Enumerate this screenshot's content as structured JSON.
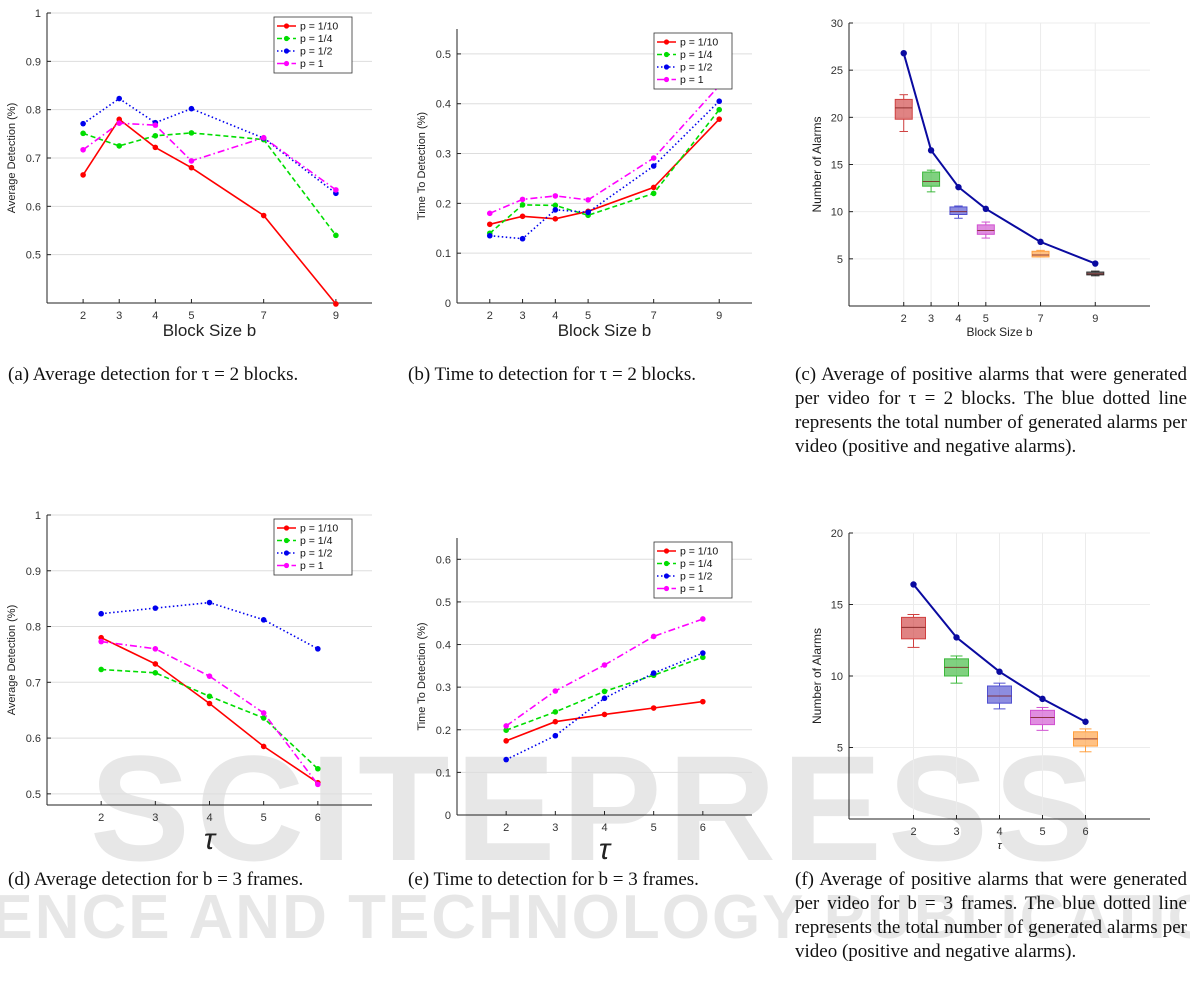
{
  "chart_data": [
    {
      "id": "a",
      "type": "line",
      "xlabel": "Block Size b",
      "ylabel": "Average Detection (%)",
      "x": [
        2,
        3,
        4,
        5,
        7,
        9
      ],
      "xticks": [
        "2",
        "3",
        "4",
        "5",
        "7",
        "9"
      ],
      "xlim": [
        1,
        10
      ],
      "ylim": [
        0.4,
        1.0
      ],
      "yticks": [
        "0.5",
        "0.6",
        "0.7",
        "0.8",
        "0.9",
        "1"
      ],
      "grid": true,
      "legend": "top-right",
      "series": [
        {
          "name": "p = 1/10",
          "color": "#ff0000",
          "dash": "solid",
          "values": [
            0.665,
            0.78,
            0.722,
            0.68,
            0.581,
            0.398
          ]
        },
        {
          "name": "p = 1/4",
          "color": "#00dd00",
          "dash": "dashed",
          "values": [
            0.751,
            0.725,
            0.746,
            0.752,
            0.738,
            0.54
          ]
        },
        {
          "name": "p = 1/2",
          "color": "#0000ee",
          "dash": "dotted",
          "values": [
            0.771,
            0.823,
            0.773,
            0.802,
            0.741,
            0.627
          ]
        },
        {
          "name": "p = 1",
          "color": "#ff00ff",
          "dash": "dashdot",
          "values": [
            0.717,
            0.772,
            0.768,
            0.694,
            0.742,
            0.634
          ]
        }
      ]
    },
    {
      "id": "b",
      "type": "line",
      "xlabel": "Block Size b",
      "ylabel": "Time To Detection (%)",
      "x": [
        2,
        3,
        4,
        5,
        7,
        9
      ],
      "xticks": [
        "2",
        "3",
        "4",
        "5",
        "7",
        "9"
      ],
      "xlim": [
        1,
        10
      ],
      "ylim": [
        0,
        0.55
      ],
      "yticks": [
        "0",
        "0.1",
        "0.2",
        "0.3",
        "0.4",
        "0.5"
      ],
      "grid": true,
      "legend": "top-right",
      "series": [
        {
          "name": "p = 1/10",
          "color": "#ff0000",
          "dash": "solid",
          "values": [
            0.158,
            0.174,
            0.169,
            0.184,
            0.232,
            0.369
          ]
        },
        {
          "name": "p = 1/4",
          "color": "#00dd00",
          "dash": "dashed",
          "values": [
            0.14,
            0.197,
            0.196,
            0.176,
            0.22,
            0.388
          ]
        },
        {
          "name": "p = 1/2",
          "color": "#0000ee",
          "dash": "dotted",
          "values": [
            0.135,
            0.129,
            0.187,
            0.182,
            0.275,
            0.405
          ]
        },
        {
          "name": "p = 1",
          "color": "#ff00ff",
          "dash": "dashdot",
          "values": [
            0.18,
            0.208,
            0.215,
            0.207,
            0.291,
            0.436
          ]
        }
      ]
    },
    {
      "id": "c",
      "type": "box",
      "xlabel": "Block Size b",
      "ylabel": "Number of Alarms",
      "x": [
        2,
        3,
        4,
        5,
        7,
        9
      ],
      "xticks": [
        "2",
        "3",
        "4",
        "5",
        "7",
        "9"
      ],
      "xlim": [
        0,
        11
      ],
      "ylim": [
        0,
        30
      ],
      "yticks": [
        "5",
        "10",
        "15",
        "20",
        "25",
        "30"
      ],
      "grid": true,
      "total_line": {
        "color": "#0a0aa0",
        "values": [
          26.8,
          16.5,
          12.6,
          10.3,
          6.8,
          4.5
        ]
      },
      "boxes": [
        {
          "color": "#d04040",
          "whisker_low": 18.5,
          "q1": 19.8,
          "median": 21.0,
          "q3": 21.9,
          "whisker_high": 22.4
        },
        {
          "color": "#3cb83c",
          "whisker_low": 12.1,
          "q1": 12.7,
          "median": 13.2,
          "q3": 14.2,
          "whisker_high": 14.4
        },
        {
          "color": "#5050d0",
          "whisker_low": 9.3,
          "q1": 9.7,
          "median": 10.0,
          "q3": 10.5,
          "whisker_high": 10.6
        },
        {
          "color": "#d050d0",
          "whisker_low": 7.2,
          "q1": 7.6,
          "median": 8.0,
          "q3": 8.6,
          "whisker_high": 8.9
        },
        {
          "color": "#ffa040",
          "whisker_low": 5.2,
          "q1": 5.2,
          "median": 5.4,
          "q3": 5.8,
          "whisker_high": 5.9
        },
        {
          "color": "#303030",
          "whisker_low": 3.2,
          "q1": 3.3,
          "median": 3.4,
          "q3": 3.6,
          "whisker_high": 3.7
        }
      ]
    },
    {
      "id": "d",
      "type": "line",
      "xlabel": "τ",
      "ylabel": "Average Detection (%)",
      "x": [
        2,
        3,
        4,
        5,
        6
      ],
      "xticks": [
        "2",
        "3",
        "4",
        "5",
        "6"
      ],
      "xlim": [
        1,
        7
      ],
      "ylim": [
        0.48,
        1.0
      ],
      "yticks": [
        "0.5",
        "0.6",
        "0.7",
        "0.8",
        "0.9",
        "1"
      ],
      "grid": true,
      "legend": "top-right",
      "series": [
        {
          "name": "p = 1/10",
          "color": "#ff0000",
          "dash": "solid",
          "values": [
            0.78,
            0.733,
            0.662,
            0.585,
            0.52
          ]
        },
        {
          "name": "p = 1/4",
          "color": "#00dd00",
          "dash": "dashed",
          "values": [
            0.723,
            0.717,
            0.675,
            0.636,
            0.545
          ]
        },
        {
          "name": "p = 1/2",
          "color": "#0000ee",
          "dash": "dotted",
          "values": [
            0.823,
            0.833,
            0.843,
            0.812,
            0.76
          ]
        },
        {
          "name": "p = 1",
          "color": "#ff00ff",
          "dash": "dashdot",
          "values": [
            0.773,
            0.76,
            0.711,
            0.645,
            0.517
          ]
        }
      ]
    },
    {
      "id": "e",
      "type": "line",
      "xlabel": "τ",
      "ylabel": "Time To Detection (%)",
      "x": [
        2,
        3,
        4,
        5,
        6
      ],
      "xticks": [
        "2",
        "3",
        "4",
        "5",
        "6"
      ],
      "xlim": [
        1,
        7
      ],
      "ylim": [
        0,
        0.65
      ],
      "yticks": [
        "0",
        "0.1",
        "0.2",
        "0.3",
        "0.4",
        "0.5",
        "0.6"
      ],
      "grid": true,
      "legend": "top-right",
      "series": [
        {
          "name": "p = 1/10",
          "color": "#ff0000",
          "dash": "solid",
          "values": [
            0.174,
            0.219,
            0.236,
            0.251,
            0.266
          ]
        },
        {
          "name": "p = 1/4",
          "color": "#00dd00",
          "dash": "dashed",
          "values": [
            0.199,
            0.242,
            0.29,
            0.328,
            0.37
          ]
        },
        {
          "name": "p = 1/2",
          "color": "#0000ee",
          "dash": "dotted",
          "values": [
            0.13,
            0.186,
            0.274,
            0.333,
            0.38
          ]
        },
        {
          "name": "p = 1",
          "color": "#ff00ff",
          "dash": "dashdot",
          "values": [
            0.209,
            0.291,
            0.352,
            0.419,
            0.46
          ]
        }
      ]
    },
    {
      "id": "f",
      "type": "box",
      "xlabel": "τ",
      "ylabel": "Number of Alarms",
      "x": [
        2,
        3,
        4,
        5,
        6
      ],
      "xticks": [
        "2",
        "3",
        "4",
        "5",
        "6"
      ],
      "xlim": [
        0.5,
        7.5
      ],
      "ylim": [
        0,
        20
      ],
      "yticks": [
        "5",
        "10",
        "15",
        "20"
      ],
      "grid": true,
      "total_line": {
        "color": "#0a0aa0",
        "values": [
          16.4,
          12.7,
          10.3,
          8.4,
          6.8
        ]
      },
      "boxes": [
        {
          "color": "#d04040",
          "whisker_low": 12.0,
          "q1": 12.6,
          "median": 13.4,
          "q3": 14.1,
          "whisker_high": 14.3
        },
        {
          "color": "#3cb83c",
          "whisker_low": 9.5,
          "q1": 10.0,
          "median": 10.6,
          "q3": 11.2,
          "whisker_high": 11.4
        },
        {
          "color": "#5050d0",
          "whisker_low": 7.7,
          "q1": 8.1,
          "median": 8.6,
          "q3": 9.3,
          "whisker_high": 9.5
        },
        {
          "color": "#d050d0",
          "whisker_low": 6.2,
          "q1": 6.6,
          "median": 7.1,
          "q3": 7.6,
          "whisker_high": 7.8
        },
        {
          "color": "#ffa040",
          "whisker_low": 4.7,
          "q1": 5.1,
          "median": 5.6,
          "q3": 6.1,
          "whisker_high": 6.3
        }
      ]
    }
  ],
  "captions": {
    "a": "(a) Average detection for τ = 2 blocks.",
    "b": "(b) Time to detection for τ = 2 blocks.",
    "c": "(c) Average of positive alarms that were generated per video for τ = 2 blocks. The blue dotted line represents the total number of generated alarms per video (positive and negative alarms).",
    "d": "(d) Average detection for b = 3 frames.",
    "e": "(e) Time to detection for b = 3 frames.",
    "f": "(f) Average of positive alarms that were generated per video for b = 3 frames. The blue dotted line represents the total number of generated alarms per video (positive and negative alarms)."
  },
  "watermark": {
    "line1": "SCITEPRESS",
    "line2": "SCIENCE AND TECHNOLOGY PUBLICATIONS"
  }
}
